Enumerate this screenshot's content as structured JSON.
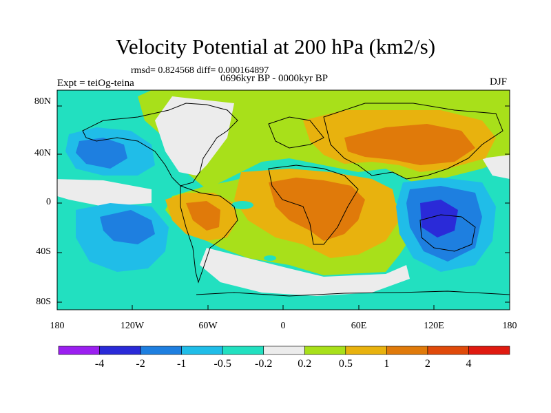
{
  "title": "Velocity Potential at 200 hPa (km2/s)",
  "stats_text": "rmsd= 0.824568 diff= 0.000164897",
  "experiment_label": "Expt = teiOg-teina",
  "period_label": "0696kyr BP - 0000kyr BP",
  "season_label": "DJF",
  "map": {
    "x_ticks": [
      "180",
      "120W",
      "60W",
      "0",
      "60E",
      "120E",
      "180"
    ],
    "y_ticks": [
      "80N",
      "40N",
      "0",
      "40S",
      "80S"
    ]
  },
  "colorbar": {
    "tick_labels": [
      "-4",
      "-2",
      "-1",
      "-0.5",
      "-0.2",
      "0.2",
      "0.5",
      "1",
      "2",
      "4"
    ],
    "colors": [
      "#9b1ff0",
      "#2a2ad8",
      "#1e7fe0",
      "#20bde8",
      "#22e0c0",
      "#ececec",
      "#a8e01a",
      "#e8b20e",
      "#e07a0a",
      "#e04a0a",
      "#e01a10"
    ]
  }
}
